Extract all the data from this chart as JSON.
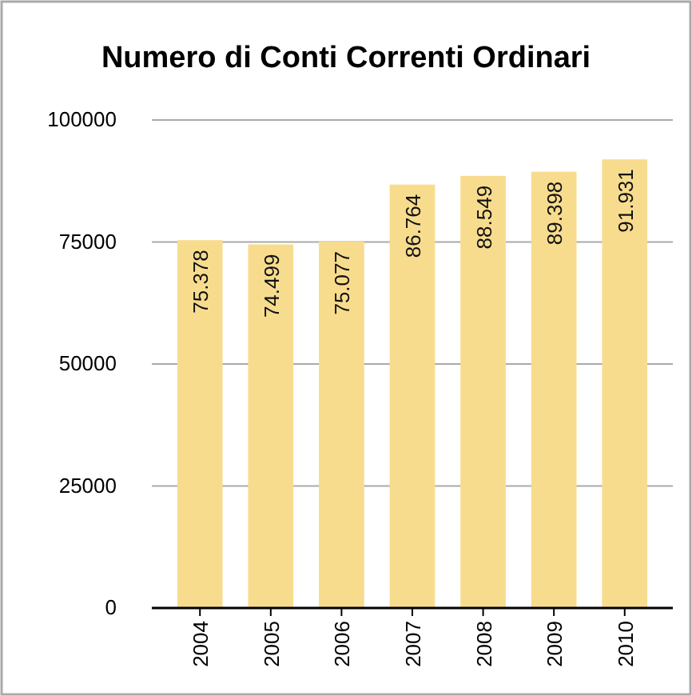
{
  "chart_data": {
    "type": "bar",
    "title": "Numero di Conti Correnti Ordinari",
    "categories": [
      "2004",
      "2005",
      "2006",
      "2007",
      "2008",
      "2009",
      "2010"
    ],
    "values": [
      75378,
      74499,
      75077,
      86764,
      88549,
      89398,
      91931
    ],
    "value_labels": [
      "75.378",
      "74.499",
      "75.077",
      "86.764",
      "88.549",
      "89.398",
      "91.931"
    ],
    "color": "#f8dc8e",
    "ylim": [
      0,
      100000
    ],
    "yticks": [
      0,
      25000,
      50000,
      75000,
      100000
    ],
    "grid": "y"
  }
}
